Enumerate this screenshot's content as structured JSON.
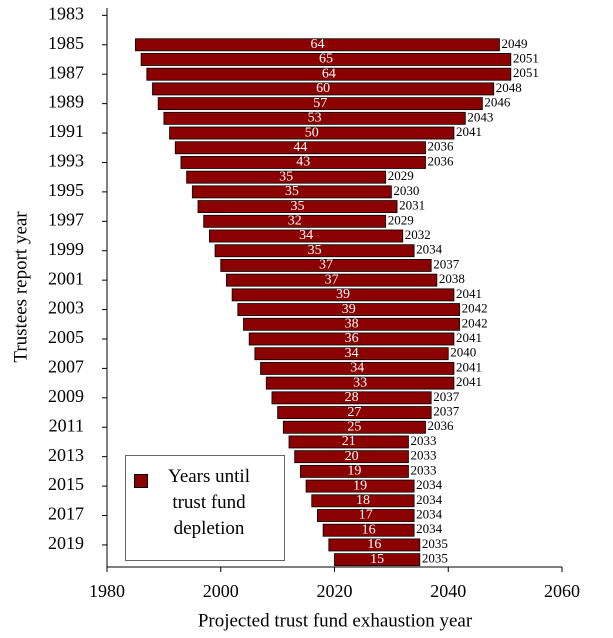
{
  "chart_data": {
    "type": "floating_bar",
    "xlabel": "Projected trust fund exhaustion year",
    "ylabel": "Trustees report year",
    "categories": [
      "1983",
      null,
      "1985",
      null,
      "1987",
      null,
      "1989",
      null,
      "1991",
      null,
      "1993",
      null,
      "1995",
      null,
      "1997",
      null,
      "1999",
      null,
      "2001",
      null,
      "2003",
      null,
      "2005",
      null,
      "2007",
      null,
      "2009",
      null,
      "2011",
      null,
      "2013",
      null,
      "2015",
      null,
      "2017",
      null,
      "2019",
      null
    ],
    "series": [
      {
        "name": "Years until trust fund depletion",
        "color": "#8b0000",
        "starts": [
          null,
          null,
          1985,
          1986,
          1987,
          1988,
          1989,
          1990,
          1991,
          1992,
          1993,
          1994,
          1995,
          1996,
          1997,
          1998,
          1999,
          2000,
          2001,
          2002,
          2003,
          2004,
          2005,
          2006,
          2007,
          2008,
          2009,
          2010,
          2011,
          2012,
          2013,
          2014,
          2015,
          2016,
          2017,
          2018,
          2019,
          2020
        ],
        "values": [
          null,
          null,
          2049,
          2051,
          2051,
          2048,
          2046,
          2043,
          2041,
          2036,
          2036,
          2029,
          2030,
          2031,
          2029,
          2032,
          2034,
          2037,
          2038,
          2041,
          2042,
          2042,
          2041,
          2040,
          2041,
          2041,
          2037,
          2037,
          2036,
          2033,
          2033,
          2033,
          2034,
          2034,
          2034,
          2034,
          2035,
          2035
        ],
        "durations": [
          null,
          null,
          64,
          65,
          64,
          60,
          57,
          53,
          50,
          44,
          43,
          35,
          35,
          35,
          32,
          34,
          35,
          37,
          37,
          39,
          39,
          38,
          36,
          34,
          34,
          33,
          28,
          27,
          25,
          21,
          20,
          19,
          19,
          18,
          17,
          16,
          16,
          15
        ]
      }
    ],
    "xlim": [
      1980,
      2060
    ],
    "xticks": [
      1980,
      2000,
      2020,
      2040,
      2060
    ],
    "legend": "lower left"
  }
}
